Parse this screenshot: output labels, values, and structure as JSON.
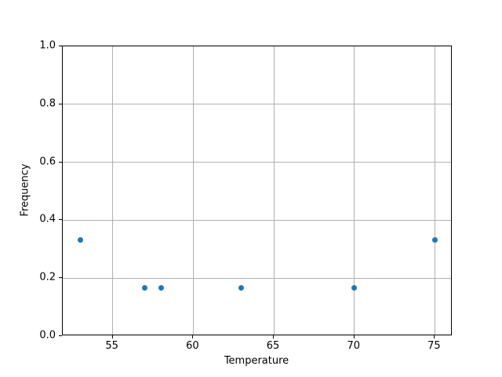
{
  "chart_data": {
    "type": "scatter",
    "title": "",
    "xlabel": "Temperature",
    "ylabel": "Frequency",
    "x": [
      53,
      57,
      58,
      63,
      70,
      75
    ],
    "y": [
      0.333,
      0.167,
      0.167,
      0.167,
      0.167,
      0.333
    ],
    "xlim": [
      51.9,
      76.1
    ],
    "ylim": [
      0.0,
      1.0
    ],
    "xticks": [
      55,
      60,
      65,
      70,
      75
    ],
    "xtick_labels": [
      "55",
      "60",
      "65",
      "70",
      "75"
    ],
    "yticks": [
      0.0,
      0.2,
      0.4,
      0.6,
      0.8,
      1.0
    ],
    "ytick_labels": [
      "0.0",
      "0.2",
      "0.4",
      "0.6",
      "0.8",
      "1.0"
    ],
    "grid": true,
    "legend_position": "none",
    "marker_color": "#1f77b4",
    "grid_color": "#b0b0b0",
    "spine_color": "#000000",
    "background_color": "#ffffff"
  }
}
